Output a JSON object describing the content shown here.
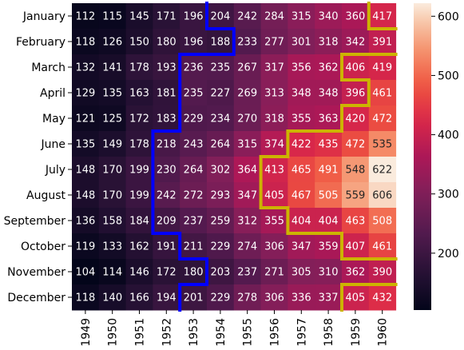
{
  "chart_data": {
    "type": "heatmap",
    "rows": [
      "January",
      "February",
      "March",
      "April",
      "May",
      "June",
      "July",
      "August",
      "September",
      "October",
      "November",
      "December"
    ],
    "columns": [
      "1949",
      "1950",
      "1951",
      "1952",
      "1953",
      "1954",
      "1955",
      "1956",
      "1957",
      "1958",
      "1959",
      "1960"
    ],
    "values": [
      [
        112,
        115,
        145,
        171,
        196,
        204,
        242,
        284,
        315,
        340,
        360,
        417
      ],
      [
        118,
        126,
        150,
        180,
        196,
        188,
        233,
        277,
        301,
        318,
        342,
        391
      ],
      [
        132,
        141,
        178,
        193,
        236,
        235,
        267,
        317,
        356,
        362,
        406,
        419
      ],
      [
        129,
        135,
        163,
        181,
        235,
        227,
        269,
        313,
        348,
        348,
        396,
        461
      ],
      [
        121,
        125,
        172,
        183,
        229,
        234,
        270,
        318,
        355,
        363,
        420,
        472
      ],
      [
        135,
        149,
        178,
        218,
        243,
        264,
        315,
        374,
        422,
        435,
        472,
        535
      ],
      [
        148,
        170,
        199,
        230,
        264,
        302,
        364,
        413,
        465,
        491,
        548,
        622
      ],
      [
        148,
        170,
        199,
        242,
        272,
        293,
        347,
        405,
        467,
        505,
        559,
        606
      ],
      [
        136,
        158,
        184,
        209,
        237,
        259,
        312,
        355,
        404,
        404,
        463,
        508
      ],
      [
        119,
        133,
        162,
        191,
        211,
        229,
        274,
        306,
        347,
        359,
        407,
        461
      ],
      [
        104,
        114,
        146,
        172,
        180,
        203,
        237,
        271,
        305,
        310,
        362,
        390
      ],
      [
        118,
        140,
        166,
        194,
        201,
        229,
        278,
        306,
        336,
        337,
        405,
        432
      ]
    ],
    "colorbar": {
      "ticks": [
        "200",
        "300",
        "400",
        "500",
        "600"
      ],
      "min": 104,
      "max": 622,
      "colormap": "rocket"
    },
    "annotations": [
      {
        "type": "boundary",
        "color": "#0000ff",
        "threshold": 200
      },
      {
        "type": "boundary",
        "color": "#ccb400",
        "threshold": 400
      }
    ]
  }
}
